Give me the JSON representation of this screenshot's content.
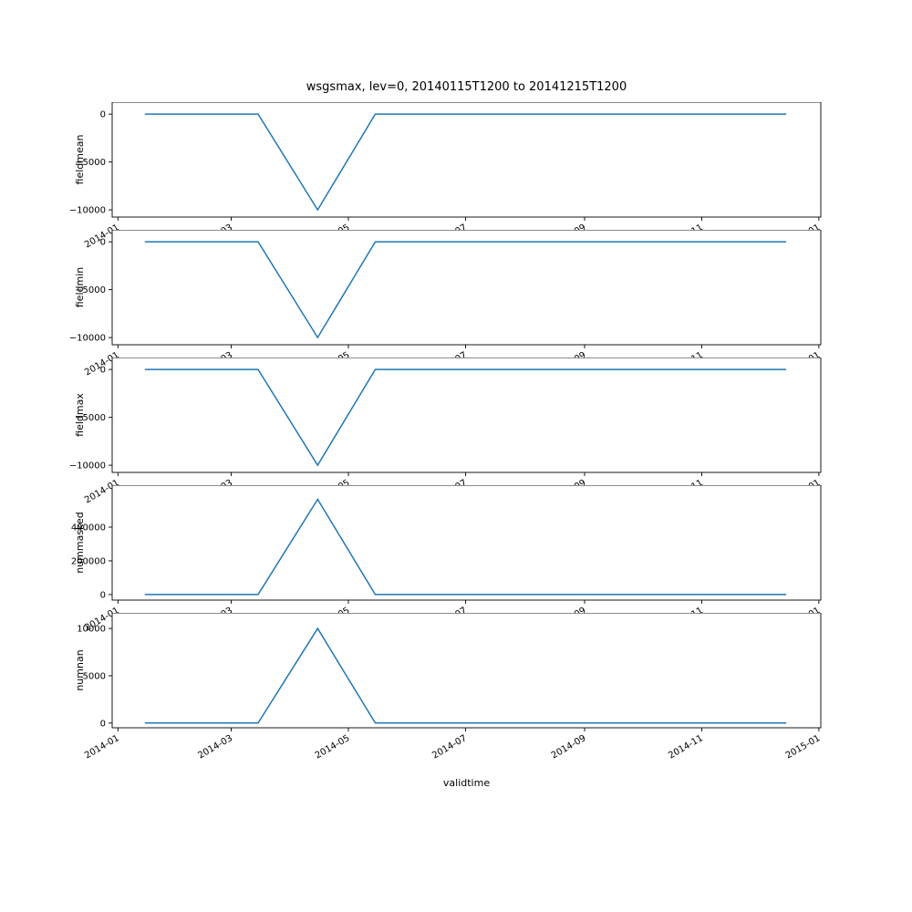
{
  "title": "wsgsmax, lev=0, 20140115T1200 to 20141215T1200",
  "xlabel": "validtime",
  "chart_data": {
    "type": "line",
    "line_color": "#1f77b4",
    "x": [
      "2014-01-15",
      "2014-02-15",
      "2014-03-15",
      "2014-04-15",
      "2014-05-15",
      "2014-06-15",
      "2014-07-15",
      "2014-08-15",
      "2014-09-15",
      "2014-10-15",
      "2014-11-15",
      "2014-12-15"
    ],
    "x_tick_labels": [
      "2014-01",
      "2014-03",
      "2014-05",
      "2014-07",
      "2014-09",
      "2014-11",
      "2015-01"
    ],
    "xlim_days_from_2014_01_01": [
      -3,
      366
    ],
    "subplots": [
      {
        "ylabel": "fieldmean",
        "values": [
          0,
          0,
          0,
          -10000,
          0,
          0,
          0,
          0,
          0,
          0,
          0,
          0
        ],
        "yticks": [
          0,
          -5000,
          -10000
        ],
        "ylim": [
          -10750,
          1250
        ]
      },
      {
        "ylabel": "fieldmin",
        "values": [
          0,
          0,
          0,
          -10000,
          0,
          0,
          0,
          0,
          0,
          0,
          0,
          0
        ],
        "yticks": [
          0,
          -5000,
          -10000
        ],
        "ylim": [
          -10750,
          1250
        ]
      },
      {
        "ylabel": "fieldmax",
        "values": [
          0,
          0,
          0,
          -10000,
          0,
          0,
          0,
          0,
          0,
          0,
          0,
          0
        ],
        "yticks": [
          0,
          -5000,
          -10000
        ],
        "ylim": [
          -10750,
          1250
        ]
      },
      {
        "ylabel": "nummasked",
        "values": [
          0,
          0,
          0,
          565000,
          0,
          0,
          0,
          0,
          0,
          0,
          0,
          0
        ],
        "yticks": [
          0,
          200000,
          400000
        ],
        "ylim": [
          -33000,
          649000
        ]
      },
      {
        "ylabel": "numnan",
        "values": [
          0,
          0,
          0,
          10000,
          0,
          0,
          0,
          0,
          0,
          0,
          0,
          0
        ],
        "yticks": [
          0,
          5000,
          10000
        ],
        "ylim": [
          -500,
          11650
        ]
      }
    ]
  }
}
